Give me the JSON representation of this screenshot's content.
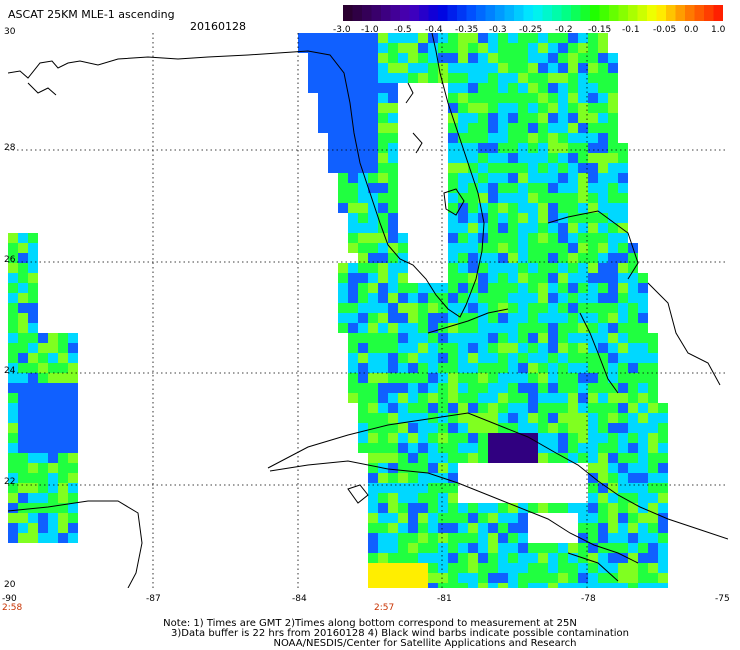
{
  "header": {
    "title": "ASCAT 25KM MLE-1 ascending",
    "date": "20160128"
  },
  "colorbar": {
    "labels": [
      "-3.0",
      "-1.0",
      "-0.5",
      "-0.4",
      "-0.35",
      "-0.3",
      "-0.25",
      "-0.2",
      "-0.15",
      "-0.1",
      "-0.05",
      "0.0",
      "1.0"
    ],
    "colors": [
      "#2a0030",
      "#3a0070",
      "#4800b8",
      "#0000e0",
      "#0050ff",
      "#00a0ff",
      "#00f0ff",
      "#00ff90",
      "#20ff00",
      "#90ff00",
      "#ffff00",
      "#ff8000",
      "#ff2000"
    ]
  },
  "axes": {
    "lat_labels": [
      "30",
      "28",
      "26",
      "24",
      "22",
      "20"
    ],
    "lon_labels": [
      "-90",
      "-87",
      "-84",
      "-81",
      "-78",
      "-75"
    ]
  },
  "times": [
    "2:58",
    "2:57"
  ],
  "notes": [
    "Note: 1) Times are GMT 2)Times along bottom correspond to measurement at 25N",
    "3)Data buffer is 22 hrs from 20160128 4) Black wind barbs indicate possible contamination",
    "NOAA/NESDIS/Center for Satellite Applications and Research"
  ],
  "palette": {
    "blue": "#1060ff",
    "cyan": "#00d8ff",
    "green": "#20ff40",
    "lime": "#80ff20",
    "purple": "#300080",
    "orange": "#ff8000",
    "yellow": "#ffee00"
  }
}
